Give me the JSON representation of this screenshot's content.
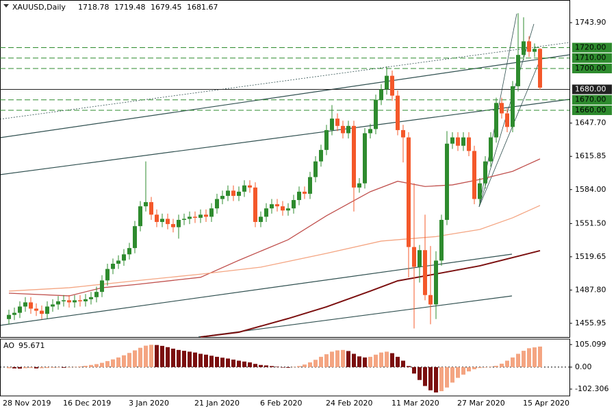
{
  "chart_data": {
    "type": "candlestick",
    "title": "XAUUSD,Daily",
    "categories": [
      "28 Nov 2019",
      null,
      null,
      null,
      null,
      null,
      null,
      null,
      null,
      null,
      null,
      "16 Dec 2019",
      null,
      null,
      null,
      null,
      null,
      null,
      null,
      null,
      null,
      null,
      null,
      "3 Jan 2020",
      null,
      null,
      null,
      null,
      null,
      null,
      null,
      null,
      null,
      null,
      null,
      "21 Jan 2020",
      null,
      null,
      null,
      null,
      null,
      null,
      null,
      null,
      null,
      null,
      null,
      "6 Feb 2020",
      null,
      null,
      null,
      null,
      null,
      null,
      null,
      null,
      null,
      null,
      null,
      "24 Feb 2020",
      null,
      null,
      null,
      null,
      null,
      null,
      null,
      null,
      null,
      null,
      null,
      "11 Mar 2020",
      null,
      null,
      null,
      null,
      null,
      null,
      null,
      null,
      null,
      null,
      null,
      "27 Mar 2020",
      null,
      null,
      null,
      null,
      null,
      null,
      null,
      null,
      null,
      null,
      null,
      "15 Apr 2020",
      null,
      null
    ],
    "open": [
      1460,
      1464,
      1466,
      1472,
      1476,
      1470,
      1468,
      1465,
      1472,
      1474,
      1477,
      1478,
      1476,
      1478,
      1477,
      1479,
      1481,
      1486,
      1497,
      1508,
      1513,
      1516,
      1522,
      1528,
      1549,
      1568,
      1572,
      1560,
      1553,
      1556,
      1551,
      1548,
      1555,
      1556,
      1558,
      1557,
      1560,
      1558,
      1566,
      1575,
      1578,
      1583,
      1578,
      1582,
      1588,
      1586,
      1553,
      1558,
      1566,
      1570,
      1568,
      1564,
      1566,
      1574,
      1582,
      1580,
      1596,
      1611,
      1622,
      1641,
      1652,
      1645,
      1638,
      1645,
      1586,
      1590,
      1638,
      1642,
      1670,
      1680,
      1693,
      1674,
      1641,
      1634,
      1529,
      1510,
      1526,
      1483,
      1474,
      1516,
      1555,
      1628,
      1634,
      1626,
      1634,
      1621,
      1575,
      1590,
      1611,
      1634,
      1667,
      1657,
      1644,
      1683,
      1713,
      1726,
      1716,
      1718.78
    ],
    "high": [
      1469,
      1471,
      1477,
      1481,
      1481,
      1475,
      1473,
      1477,
      1479,
      1482,
      1483,
      1483,
      1483,
      1483,
      1484,
      1486,
      1491,
      1502,
      1513,
      1518,
      1521,
      1527,
      1533,
      1554,
      1573,
      1611,
      1577,
      1565,
      1561,
      1561,
      1556,
      1560,
      1561,
      1563,
      1563,
      1565,
      1565,
      1571,
      1580,
      1583,
      1588,
      1588,
      1587,
      1593,
      1593,
      1591,
      1563,
      1571,
      1575,
      1575,
      1573,
      1571,
      1579,
      1587,
      1587,
      1601,
      1616,
      1627,
      1646,
      1665,
      1657,
      1650,
      1650,
      1650,
      1595,
      1643,
      1647,
      1675,
      1685,
      1702,
      1698,
      1679,
      1646,
      1639,
      1590,
      1531,
      1560,
      1530,
      1525,
      1560,
      1640,
      1639,
      1639,
      1639,
      1639,
      1626,
      1595,
      1616,
      1639,
      1672,
      1672,
      1662,
      1688,
      1753,
      1749,
      1731,
      1724,
      1719.48
    ],
    "low": [
      1455,
      1459,
      1461,
      1467,
      1465,
      1463,
      1460,
      1460,
      1467,
      1469,
      1472,
      1471,
      1471,
      1472,
      1472,
      1474,
      1476,
      1481,
      1492,
      1503,
      1508,
      1511,
      1517,
      1523,
      1544,
      1563,
      1555,
      1548,
      1548,
      1546,
      1543,
      1537,
      1550,
      1551,
      1552,
      1552,
      1553,
      1553,
      1561,
      1570,
      1573,
      1573,
      1573,
      1577,
      1581,
      1548,
      1548,
      1553,
      1561,
      1563,
      1559,
      1559,
      1561,
      1569,
      1575,
      1575,
      1591,
      1606,
      1617,
      1636,
      1640,
      1633,
      1633,
      1563,
      1581,
      1585,
      1633,
      1637,
      1665,
      1675,
      1669,
      1636,
      1610,
      1500,
      1451,
      1495,
      1478,
      1455,
      1460,
      1511,
      1550,
      1623,
      1621,
      1621,
      1616,
      1570,
      1570,
      1585,
      1606,
      1629,
      1652,
      1639,
      1639,
      1678,
      1708,
      1711,
      1711,
      1679.45
    ],
    "close": [
      1464,
      1466,
      1472,
      1476,
      1470,
      1468,
      1465,
      1472,
      1474,
      1477,
      1478,
      1476,
      1478,
      1477,
      1479,
      1481,
      1486,
      1497,
      1508,
      1513,
      1516,
      1522,
      1528,
      1549,
      1568,
      1572,
      1560,
      1553,
      1556,
      1551,
      1548,
      1555,
      1556,
      1558,
      1557,
      1560,
      1558,
      1566,
      1575,
      1578,
      1583,
      1578,
      1582,
      1588,
      1586,
      1553,
      1558,
      1566,
      1570,
      1568,
      1564,
      1566,
      1574,
      1582,
      1580,
      1596,
      1611,
      1622,
      1641,
      1652,
      1645,
      1638,
      1645,
      1586,
      1590,
      1638,
      1642,
      1670,
      1680,
      1693,
      1674,
      1641,
      1634,
      1529,
      1510,
      1526,
      1483,
      1474,
      1516,
      1555,
      1628,
      1634,
      1626,
      1634,
      1621,
      1575,
      1590,
      1611,
      1634,
      1667,
      1657,
      1644,
      1683,
      1713,
      1726,
      1716,
      1718.78,
      1681.67
    ],
    "up_color": "#2e8b2e",
    "down_color": "#f4582a",
    "ylim": [
      1442.8,
      1765.6
    ],
    "yticks": [
      {
        "value": 1743.9,
        "label": "1743.90"
      },
      {
        "value": 1647.7,
        "label": "1647.70"
      },
      {
        "value": 1615.85,
        "label": "1615.85"
      },
      {
        "value": 1584,
        "label": "1584.00"
      },
      {
        "value": 1551.5,
        "label": "1551.50"
      },
      {
        "value": 1519.65,
        "label": "1519.65"
      },
      {
        "value": 1487.8,
        "label": "1487.80"
      },
      {
        "value": 1455.95,
        "label": "1455.95"
      }
    ],
    "levels": [
      {
        "value": 1720,
        "label": "1720.00",
        "color": "#2e8b2e",
        "dashed": true
      },
      {
        "value": 1710,
        "label": "1710.00",
        "color": "#2e8b2e",
        "dashed": true
      },
      {
        "value": 1700,
        "label": "1700.00",
        "color": "#2e8b2e",
        "dashed": true
      },
      {
        "value": 1680,
        "label": "1680.00",
        "color": "#222222",
        "dashed": false
      },
      {
        "value": 1670,
        "label": "1670.00",
        "color": "#2e8b2e",
        "dashed": true
      },
      {
        "value": 1660,
        "label": "1660.00",
        "color": "#2e8b2e",
        "dashed": true
      }
    ],
    "moving_averages": [
      {
        "color": "#c0504d",
        "x": [
          0,
          11,
          17,
          23,
          35,
          42,
          51,
          58,
          66,
          71,
          76,
          81,
          86,
          92,
          97
        ],
        "values": [
          1484.8,
          1482.2,
          1490,
          1493,
          1500,
          1516.3,
          1536,
          1559,
          1582,
          1592,
          1587,
          1588.5,
          1593.7,
          1601.5,
          1613.4
        ]
      },
      {
        "color": "#f4a582",
        "x": [
          0,
          11,
          23,
          35,
          46,
          58,
          68,
          78,
          86,
          92,
          97
        ],
        "values": [
          1486.8,
          1490,
          1496.6,
          1503,
          1509.7,
          1522.9,
          1534.7,
          1539,
          1545.8,
          1557,
          1568.8
        ]
      },
      {
        "color": "#7b0f0f",
        "x": [
          35,
          42,
          51,
          58,
          66,
          71,
          78,
          86,
          97
        ],
        "values": [
          1442.8,
          1447.4,
          1460.5,
          1471.7,
          1486.8,
          1496.6,
          1503.2,
          1511,
          1525.5
        ]
      }
    ],
    "indicator": {
      "name": "AO",
      "values": [
        -5,
        -6,
        -7,
        -5,
        -4,
        -6,
        -5,
        -4,
        -3,
        -2,
        -3,
        -2,
        1,
        3,
        6,
        10,
        14,
        20,
        28,
        36,
        45,
        55,
        66,
        78,
        90,
        100,
        104,
        103,
        99,
        93,
        86,
        80,
        76,
        72,
        68,
        62,
        58,
        53,
        48,
        44,
        40,
        35,
        30,
        26,
        22,
        15,
        10,
        8,
        5,
        2,
        -2,
        -3,
        1,
        5,
        12,
        22,
        34,
        48,
        60,
        72,
        78,
        80,
        75,
        62,
        50,
        45,
        48,
        58,
        68,
        72,
        65,
        48,
        30,
        5,
        -30,
        -60,
        -88,
        -108,
        -118,
        -112,
        -95,
        -72,
        -50,
        -35,
        -20,
        -10,
        -4,
        -2,
        2,
        6,
        16,
        30,
        45,
        62,
        76,
        88,
        92,
        95.671
      ],
      "up_color": "#f4a582",
      "down_color": "#7b0f0f",
      "ylim": [
        -134.2,
        130.6
      ],
      "yticks": [
        {
          "value": 105.099,
          "label": "105.099"
        },
        {
          "value": 0,
          "label": "0.00"
        },
        {
          "value": -102.306,
          "label": "-102.306"
        }
      ]
    }
  }
}
